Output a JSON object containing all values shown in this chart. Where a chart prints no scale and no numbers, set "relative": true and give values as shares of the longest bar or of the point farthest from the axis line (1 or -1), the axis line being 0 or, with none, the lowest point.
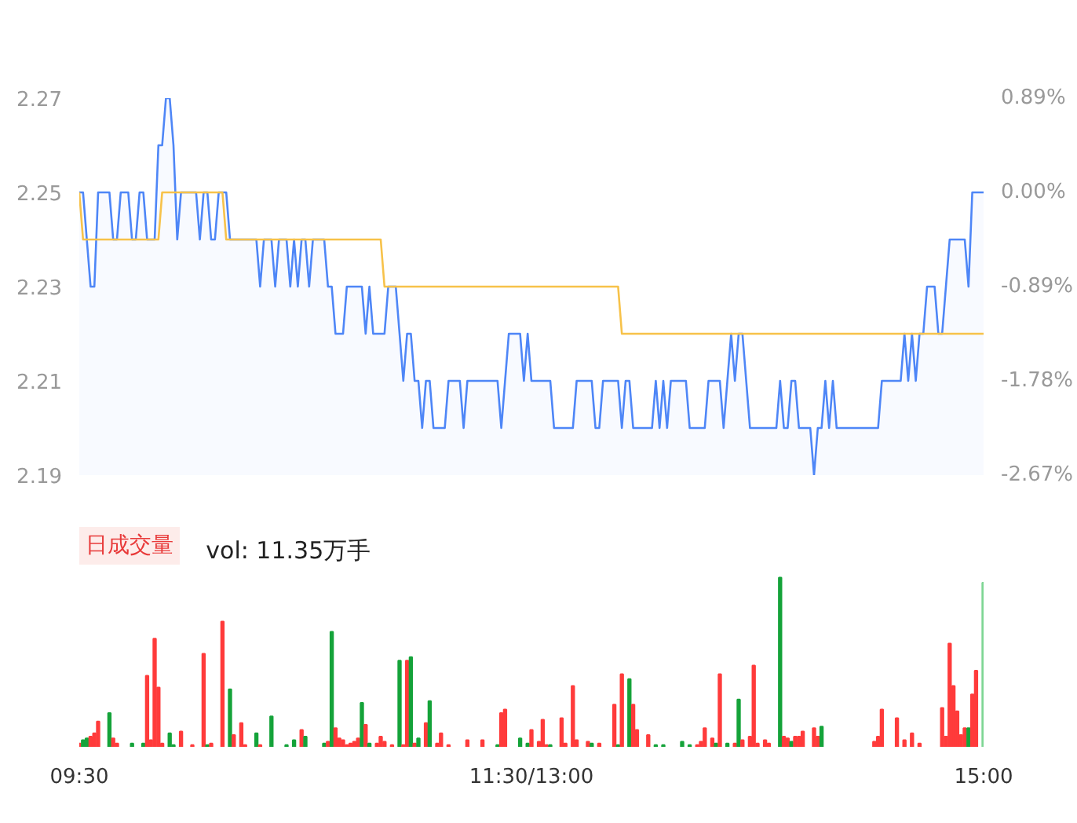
{
  "chart_data": [
    {
      "type": "line",
      "ylim": [
        2.19,
        2.27
      ],
      "yticks": [
        2.19,
        2.21,
        2.23,
        2.25,
        2.27
      ],
      "y2lim": [
        -2.67,
        0.89
      ],
      "y2ticks": [
        {
          "value": -2.67,
          "label": "-2.67%"
        },
        {
          "value": -1.78,
          "label": "-1.78%"
        },
        {
          "value": -0.89,
          "label": "-0.89%"
        },
        {
          "value": 0,
          "label": "0.00%"
        },
        {
          "value": 0.89,
          "label": "0.89%"
        }
      ],
      "tick_labels": "y",
      "grid": false,
      "categories": [
        null,
        null,
        null,
        null,
        null,
        null,
        null,
        null,
        null,
        null,
        null,
        null,
        null,
        null,
        null,
        null,
        null,
        null,
        null,
        null,
        null,
        null,
        null,
        null,
        null,
        null,
        null,
        null,
        null,
        null,
        null,
        null,
        null,
        null,
        null,
        null,
        null,
        null,
        null,
        null,
        null,
        null,
        null,
        null,
        null,
        null,
        null,
        null,
        null,
        null,
        null,
        null,
        null,
        null,
        null,
        null,
        null,
        null,
        null,
        null,
        null,
        null,
        null,
        null,
        null,
        null,
        null,
        null,
        null,
        null,
        null,
        null,
        null,
        null,
        null,
        null,
        null,
        null,
        null,
        null,
        null,
        null,
        null,
        null,
        null,
        null,
        null,
        null,
        null,
        null,
        null,
        null,
        null,
        null,
        null,
        null,
        null,
        null,
        null,
        null,
        null,
        null,
        null,
        null,
        null,
        null,
        null,
        null,
        null,
        null,
        null,
        null,
        null,
        null,
        null,
        null,
        null,
        null,
        null,
        null,
        null,
        null,
        null,
        null,
        null,
        null,
        null,
        null,
        null,
        null,
        null,
        null,
        null,
        null,
        null,
        null,
        null,
        null,
        null,
        null,
        null,
        null,
        null,
        null,
        null,
        null,
        null,
        null,
        null,
        null,
        null,
        null,
        null,
        null,
        null,
        null,
        null,
        null,
        null,
        null,
        null,
        null,
        null,
        null,
        null,
        null,
        null,
        null,
        null,
        null,
        null,
        null,
        null,
        null,
        null,
        null,
        null,
        null,
        null,
        null,
        null,
        null,
        null,
        null,
        null,
        null,
        null,
        null,
        null,
        null,
        null,
        null,
        null,
        null,
        null,
        null,
        null,
        null,
        null,
        null,
        null,
        null,
        null,
        null,
        null,
        null,
        null,
        null,
        null,
        null,
        null,
        null,
        null,
        null,
        null,
        null,
        null,
        null,
        null,
        null,
        null,
        null,
        null,
        null,
        null,
        null,
        null,
        null,
        null,
        null,
        null,
        null,
        null,
        null,
        null,
        null,
        null,
        null,
        null,
        null,
        null
      ],
      "series": [
        {
          "type": "area",
          "color": "#4e86f7",
          "values": [
            2.25,
            2.25,
            2.24,
            2.23,
            2.23,
            2.25,
            2.25,
            2.25,
            2.25,
            2.24,
            2.24,
            2.25,
            2.25,
            2.25,
            2.24,
            2.24,
            2.25,
            2.25,
            2.24,
            2.24,
            2.24,
            2.26,
            2.26,
            2.27,
            2.27,
            2.26,
            2.24,
            2.25,
            2.25,
            2.25,
            2.25,
            2.25,
            2.24,
            2.25,
            2.25,
            2.24,
            2.24,
            2.25,
            2.25,
            2.25,
            2.24,
            2.24,
            2.24,
            2.24,
            2.24,
            2.24,
            2.24,
            2.24,
            2.23,
            2.24,
            2.24,
            2.24,
            2.23,
            2.24,
            2.24,
            2.24,
            2.23,
            2.24,
            2.23,
            2.24,
            2.24,
            2.23,
            2.24,
            2.24,
            2.24,
            2.24,
            2.23,
            2.23,
            2.22,
            2.22,
            2.22,
            2.23,
            2.23,
            2.23,
            2.23,
            2.23,
            2.22,
            2.23,
            2.22,
            2.22,
            2.22,
            2.22,
            2.23,
            2.23,
            2.23,
            2.22,
            2.21,
            2.22,
            2.22,
            2.21,
            2.21,
            2.2,
            2.21,
            2.21,
            2.2,
            2.2,
            2.2,
            2.2,
            2.21,
            2.21,
            2.21,
            2.21,
            2.2,
            2.21,
            2.21,
            2.21,
            2.21,
            2.21,
            2.21,
            2.21,
            2.21,
            2.21,
            2.2,
            2.21,
            2.22,
            2.22,
            2.22,
            2.22,
            2.21,
            2.22,
            2.21,
            2.21,
            2.21,
            2.21,
            2.21,
            2.21,
            2.2,
            2.2,
            2.2,
            2.2,
            2.2,
            2.2,
            2.21,
            2.21,
            2.21,
            2.21,
            2.21,
            2.2,
            2.2,
            2.21,
            2.21,
            2.21,
            2.21,
            2.21,
            2.2,
            2.21,
            2.21,
            2.2,
            2.2,
            2.2,
            2.2,
            2.2,
            2.2,
            2.21,
            2.2,
            2.21,
            2.2,
            2.21,
            2.21,
            2.21,
            2.21,
            2.21,
            2.2,
            2.2,
            2.2,
            2.2,
            2.2,
            2.21,
            2.21,
            2.21,
            2.21,
            2.2,
            2.21,
            2.22,
            2.21,
            2.22,
            2.22,
            2.21,
            2.2,
            2.2,
            2.2,
            2.2,
            2.2,
            2.2,
            2.2,
            2.2,
            2.21,
            2.2,
            2.2,
            2.21,
            2.21,
            2.2,
            2.2,
            2.2,
            2.2,
            2.19,
            2.2,
            2.2,
            2.21,
            2.2,
            2.21,
            2.2,
            2.2,
            2.2,
            2.2,
            2.2,
            2.2,
            2.2,
            2.2,
            2.2,
            2.2,
            2.2,
            2.2,
            2.21,
            2.21,
            2.21,
            2.21,
            2.21,
            2.21,
            2.22,
            2.21,
            2.22,
            2.21,
            2.22,
            2.22,
            2.23,
            2.23,
            2.23,
            2.22,
            2.22,
            2.23,
            2.24,
            2.24,
            2.24,
            2.24,
            2.24,
            2.23,
            2.25,
            2.25,
            2.25,
            2.25
          ]
        },
        {
          "type": "line",
          "color": "#f7c24a",
          "values": [
            2.25,
            2.24,
            2.24,
            2.24,
            2.24,
            2.24,
            2.24,
            2.24,
            2.24,
            2.24,
            2.24,
            2.24,
            2.24,
            2.24,
            2.24,
            2.24,
            2.24,
            2.24,
            2.24,
            2.24,
            2.24,
            2.24,
            2.25,
            2.25,
            2.25,
            2.25,
            2.25,
            2.25,
            2.25,
            2.25,
            2.25,
            2.25,
            2.25,
            2.25,
            2.25,
            2.25,
            2.25,
            2.25,
            2.25,
            2.24,
            2.24,
            2.24,
            2.24,
            2.24,
            2.24,
            2.24,
            2.24,
            2.24,
            2.24,
            2.24,
            2.24,
            2.24,
            2.24,
            2.24,
            2.24,
            2.24,
            2.24,
            2.24,
            2.24,
            2.24,
            2.24,
            2.24,
            2.24,
            2.24,
            2.24,
            2.24,
            2.24,
            2.24,
            2.24,
            2.24,
            2.24,
            2.24,
            2.24,
            2.24,
            2.24,
            2.24,
            2.24,
            2.24,
            2.24,
            2.24,
            2.24,
            2.23,
            2.23,
            2.23,
            2.23,
            2.23,
            2.23,
            2.23,
            2.23,
            2.23,
            2.23,
            2.23,
            2.23,
            2.23,
            2.23,
            2.23,
            2.23,
            2.23,
            2.23,
            2.23,
            2.23,
            2.23,
            2.23,
            2.23,
            2.23,
            2.23,
            2.23,
            2.23,
            2.23,
            2.23,
            2.23,
            2.23,
            2.23,
            2.23,
            2.23,
            2.23,
            2.23,
            2.23,
            2.23,
            2.23,
            2.23,
            2.23,
            2.23,
            2.23,
            2.23,
            2.23,
            2.23,
            2.23,
            2.23,
            2.23,
            2.23,
            2.23,
            2.23,
            2.23,
            2.23,
            2.23,
            2.23,
            2.23,
            2.23,
            2.23,
            2.23,
            2.23,
            2.23,
            2.23,
            2.22,
            2.22,
            2.22,
            2.22,
            2.22,
            2.22,
            2.22,
            2.22,
            2.22,
            2.22,
            2.22,
            2.22,
            2.22,
            2.22,
            2.22,
            2.22,
            2.22,
            2.22,
            2.22,
            2.22,
            2.22,
            2.22,
            2.22,
            2.22,
            2.22,
            2.22,
            2.22,
            2.22,
            2.22,
            2.22,
            2.22,
            2.22,
            2.22,
            2.22,
            2.22,
            2.22,
            2.22,
            2.22,
            2.22,
            2.22,
            2.22,
            2.22,
            2.22,
            2.22,
            2.22,
            2.22,
            2.22,
            2.22,
            2.22,
            2.22,
            2.22,
            2.22,
            2.22,
            2.22,
            2.22,
            2.22,
            2.22,
            2.22,
            2.22,
            2.22,
            2.22,
            2.22,
            2.22,
            2.22,
            2.22,
            2.22,
            2.22,
            2.22,
            2.22,
            2.22,
            2.22,
            2.22,
            2.22,
            2.22,
            2.22,
            2.22,
            2.22,
            2.22,
            2.22,
            2.22,
            2.22,
            2.22,
            2.22,
            2.22,
            2.22,
            2.22,
            2.22,
            2.22,
            2.22,
            2.22,
            2.22,
            2.22,
            2.22,
            2.22,
            2.22,
            2.22,
            2.22
          ]
        }
      ]
    },
    {
      "type": "bar",
      "title": "日成交量",
      "annotations": [
        "vol: 11.35万手"
      ],
      "relative": true,
      "grid": false,
      "categories": [
        "09:30",
        null,
        null,
        null,
        null,
        null,
        null,
        null,
        null,
        null,
        null,
        null,
        null,
        null,
        null,
        null,
        null,
        null,
        null,
        null,
        null,
        null,
        null,
        null,
        null,
        null,
        null,
        null,
        null,
        null,
        null,
        null,
        null,
        null,
        null,
        null,
        null,
        null,
        null,
        null,
        null,
        null,
        null,
        null,
        null,
        null,
        null,
        null,
        null,
        null,
        null,
        null,
        null,
        null,
        null,
        null,
        null,
        null,
        null,
        null,
        null,
        null,
        null,
        null,
        null,
        null,
        null,
        null,
        null,
        null,
        null,
        null,
        null,
        null,
        null,
        null,
        null,
        null,
        null,
        null,
        null,
        null,
        null,
        null,
        null,
        null,
        null,
        null,
        null,
        null,
        null,
        null,
        null,
        null,
        null,
        null,
        null,
        null,
        null,
        null,
        null,
        null,
        null,
        null,
        null,
        null,
        null,
        null,
        null,
        null,
        null,
        null,
        null,
        null,
        null,
        null,
        null,
        null,
        null,
        null,
        "11:30/13:00",
        null,
        null,
        null,
        null,
        null,
        null,
        null,
        null,
        null,
        null,
        null,
        null,
        null,
        null,
        null,
        null,
        null,
        null,
        null,
        null,
        null,
        null,
        null,
        null,
        null,
        null,
        null,
        null,
        null,
        null,
        null,
        null,
        null,
        null,
        null,
        null,
        null,
        null,
        null,
        null,
        null,
        null,
        null,
        null,
        null,
        null,
        null,
        null,
        null,
        null,
        null,
        null,
        null,
        null,
        null,
        null,
        null,
        null,
        null,
        null,
        null,
        null,
        null,
        null,
        null,
        null,
        null,
        null,
        null,
        null,
        null,
        null,
        null,
        null,
        null,
        null,
        null,
        null,
        null,
        null,
        null,
        null,
        null,
        null,
        null,
        null,
        null,
        null,
        null,
        null,
        null,
        null,
        null,
        null,
        null,
        null,
        null,
        null,
        null,
        null,
        null,
        null,
        null,
        null,
        null,
        null,
        null,
        null,
        null,
        null,
        null,
        null,
        null,
        null,
        null,
        null,
        null,
        null,
        null,
        "15:00"
      ],
      "values": [
        0.02,
        0.04,
        0.05,
        0.06,
        0.08,
        0.15,
        null,
        null,
        0.2,
        0.05,
        0.02,
        null,
        null,
        null,
        0.02,
        null,
        null,
        0.02,
        0.42,
        0.04,
        0.64,
        0.35,
        0.02,
        null,
        0.08,
        0.01,
        null,
        0.09,
        null,
        null,
        0.01,
        null,
        null,
        0.55,
        0.01,
        0.02,
        null,
        null,
        0.74,
        null,
        0.34,
        0.07,
        null,
        0.14,
        0.01,
        null,
        null,
        0.08,
        0.01,
        null,
        null,
        0.18,
        null,
        null,
        null,
        0.01,
        null,
        0.04,
        null,
        0.1,
        0.06,
        null,
        null,
        null,
        null,
        0.02,
        0.03,
        0.68,
        0.11,
        0.05,
        0.04,
        0.01,
        0.02,
        0.03,
        0.05,
        0.26,
        0.13,
        0.02,
        null,
        0.02,
        0.06,
        0.03,
        null,
        0.01,
        null,
        0.51,
        0.01,
        0.51,
        0.53,
        0.02,
        0.05,
        null,
        0.14,
        0.27,
        null,
        0.02,
        0.08,
        null,
        0.01,
        null,
        null,
        null,
        null,
        0.04,
        null,
        null,
        null,
        0.04,
        null,
        null,
        null,
        0.01,
        0.2,
        0.22,
        null,
        null,
        null,
        0.05,
        null,
        0.02,
        0.1,
        null,
        0.03,
        0.16,
        0.01,
        0.01,
        null,
        null,
        0.17,
        0.02,
        null,
        0.36,
        0.04,
        null,
        null,
        0.03,
        0.02,
        null,
        0.02,
        null,
        null,
        null,
        0.25,
        0.01,
        0.43,
        null,
        0.4,
        0.25,
        0.1,
        null,
        null,
        0.07,
        null,
        0.01,
        null,
        0.01,
        null,
        null,
        null,
        null,
        0.03,
        null,
        0.01,
        null,
        0.01,
        0.03,
        0.11,
        null,
        0.05,
        0.02,
        0.43,
        null,
        0.02,
        null,
        0.02,
        0.28,
        0.04,
        null,
        0.06,
        0.48,
        0.02,
        null,
        0.04,
        0.02,
        null,
        null,
        1,
        0.06,
        0.05,
        0.03,
        0.06,
        0.06,
        0.09,
        null,
        null,
        0.11,
        0.06,
        0.12,
        null,
        null,
        null,
        null,
        null,
        null,
        null,
        null,
        null,
        null,
        null,
        null,
        null,
        0.03,
        0.06,
        0.22,
        null,
        null,
        null,
        0.17,
        null,
        0.04,
        null,
        0.08,
        null,
        0.02,
        null,
        null,
        null,
        null,
        null,
        0.23,
        0.06,
        0.61,
        0.36,
        0.21,
        0.07,
        0.11,
        0.11,
        0.31,
        0.45,
        null,
        0.97
      ],
      "colors": [
        "#ff3b3b",
        "#15a33a",
        "#15a33a",
        "#ff3b3b",
        "#ff3b3b",
        "#ff3b3b",
        null,
        null,
        "#15a33a",
        "#ff3b3b",
        "#ff3b3b",
        null,
        null,
        null,
        "#15a33a",
        null,
        null,
        "#15a33a",
        "#ff3b3b",
        "#ff3b3b",
        "#ff3b3b",
        "#ff3b3b",
        "#ff3b3b",
        null,
        "#15a33a",
        "#15a33a",
        null,
        "#ff3b3b",
        null,
        null,
        "#ff3b3b",
        null,
        null,
        "#ff3b3b",
        "#15a33a",
        "#ff3b3b",
        null,
        null,
        "#ff3b3b",
        null,
        "#15a33a",
        "#ff3b3b",
        null,
        "#ff3b3b",
        "#ff3b3b",
        null,
        null,
        "#15a33a",
        "#ff3b3b",
        null,
        null,
        "#15a33a",
        null,
        null,
        null,
        "#15a33a",
        null,
        "#15a33a",
        null,
        "#ff3b3b",
        "#15a33a",
        null,
        null,
        null,
        null,
        "#15a33a",
        "#ff3b3b",
        "#15a33a",
        "#ff3b3b",
        "#ff3b3b",
        "#ff3b3b",
        "#ff3b3b",
        "#ff3b3b",
        "#ff3b3b",
        "#ff3b3b",
        "#15a33a",
        "#ff3b3b",
        "#15a33a",
        null,
        "#ff3b3b",
        "#ff3b3b",
        "#ff3b3b",
        null,
        "#ff3b3b",
        null,
        "#15a33a",
        "#ff3b3b",
        "#ff3b3b",
        "#15a33a",
        "#ff3b3b",
        "#15a33a",
        null,
        "#ff3b3b",
        "#15a33a",
        null,
        "#ff3b3b",
        "#ff3b3b",
        null,
        "#ff3b3b",
        null,
        null,
        null,
        null,
        "#ff3b3b",
        null,
        null,
        null,
        "#ff3b3b",
        null,
        null,
        null,
        "#15a33a",
        "#ff3b3b",
        "#ff3b3b",
        null,
        null,
        null,
        "#15a33a",
        null,
        "#15a33a",
        "#ff3b3b",
        null,
        "#ff3b3b",
        "#ff3b3b",
        "#ff3b3b",
        "#15a33a",
        null,
        null,
        "#ff3b3b",
        "#ff3b3b",
        null,
        "#ff3b3b",
        "#ff3b3b",
        null,
        null,
        "#ff3b3b",
        "#15a33a",
        null,
        "#ff3b3b",
        null,
        null,
        null,
        "#ff3b3b",
        "#15a33a",
        "#ff3b3b",
        null,
        "#15a33a",
        "#ff3b3b",
        "#ff3b3b",
        null,
        null,
        "#ff3b3b",
        null,
        "#15a33a",
        null,
        "#15a33a",
        null,
        null,
        null,
        null,
        "#15a33a",
        null,
        "#15a33a",
        null,
        "#ff3b3b",
        "#ff3b3b",
        "#ff3b3b",
        null,
        "#ff3b3b",
        "#15a33a",
        "#ff3b3b",
        null,
        "#15a33a",
        null,
        "#ff3b3b",
        "#15a33a",
        "#ff3b3b",
        null,
        "#ff3b3b",
        "#ff3b3b",
        "#ff3b3b",
        null,
        "#ff3b3b",
        "#ff3b3b",
        null,
        null,
        "#15a33a",
        "#ff3b3b",
        "#ff3b3b",
        "#15a33a",
        "#ff3b3b",
        "#ff3b3b",
        "#ff3b3b",
        null,
        null,
        "#ff3b3b",
        "#ff3b3b",
        "#15a33a",
        null,
        null,
        null,
        null,
        null,
        null,
        null,
        null,
        null,
        null,
        null,
        null,
        null,
        "#ff3b3b",
        "#ff3b3b",
        "#ff3b3b",
        null,
        null,
        null,
        "#ff3b3b",
        null,
        "#ff3b3b",
        null,
        "#ff3b3b",
        null,
        "#ff3b3b",
        null,
        null,
        null,
        null,
        null,
        "#ff3b3b",
        "#ff3b3b",
        "#ff3b3b",
        "#ff3b3b",
        "#ff3b3b",
        "#ff3b3b",
        "#ff3b3b",
        "#15a33a",
        "#ff3b3b",
        "#ff3b3b",
        null,
        "#7fd694"
      ]
    }
  ]
}
